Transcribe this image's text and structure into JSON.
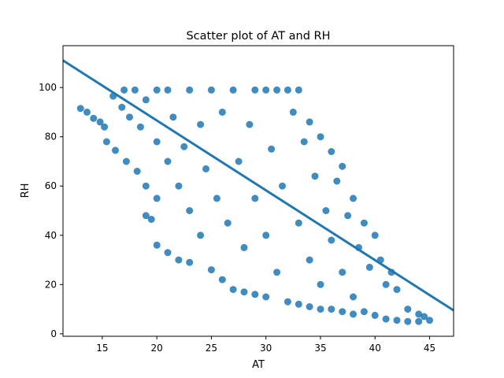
{
  "chart_data": {
    "type": "scatter",
    "title": "Scatter plot of AT and RH",
    "xlabel": "AT",
    "ylabel": "RH",
    "xlim": [
      11.4,
      47.2
    ],
    "ylim": [
      -1.0,
      117.0
    ],
    "xticks": [
      "15",
      "20",
      "25",
      "30",
      "35",
      "40",
      "45"
    ],
    "yticks": [
      "0",
      "20",
      "40",
      "60",
      "80",
      "100"
    ],
    "grid": false,
    "point_color": "#1f77b4",
    "series": [
      {
        "points": [
          [
            13.0,
            91.5
          ],
          [
            13.6,
            90.0
          ],
          [
            14.2,
            87.5
          ],
          [
            14.8,
            86.0
          ],
          [
            15.2,
            84.0
          ],
          [
            15.4,
            78.0
          ],
          [
            16.0,
            96.5
          ],
          [
            16.2,
            74.5
          ],
          [
            16.8,
            92.0
          ],
          [
            17.0,
            99.0
          ],
          [
            17.2,
            70.0
          ],
          [
            17.5,
            88.0
          ],
          [
            18.0,
            99.0
          ],
          [
            18.2,
            66.0
          ],
          [
            18.5,
            84.0
          ],
          [
            19.0,
            95.0
          ],
          [
            19.0,
            60.0
          ],
          [
            19.0,
            48.0
          ],
          [
            19.5,
            46.5
          ],
          [
            20.0,
            99.0
          ],
          [
            20.0,
            78.0
          ],
          [
            20.0,
            55.0
          ],
          [
            20.0,
            36.0
          ],
          [
            21.0,
            99.0
          ],
          [
            21.0,
            70.0
          ],
          [
            21.0,
            33.0
          ],
          [
            21.5,
            88.0
          ],
          [
            22.0,
            60.0
          ],
          [
            22.0,
            30.0
          ],
          [
            22.5,
            76.0
          ],
          [
            23.0,
            99.0
          ],
          [
            23.0,
            50.0
          ],
          [
            23.0,
            29.0
          ],
          [
            24.0,
            85.0
          ],
          [
            24.0,
            40.0
          ],
          [
            24.5,
            67.0
          ],
          [
            25.0,
            99.0
          ],
          [
            25.0,
            26.0
          ],
          [
            25.5,
            55.0
          ],
          [
            26.0,
            90.0
          ],
          [
            26.0,
            22.0
          ],
          [
            26.5,
            45.0
          ],
          [
            27.0,
            99.0
          ],
          [
            27.0,
            18.0
          ],
          [
            27.5,
            70.0
          ],
          [
            28.0,
            35.0
          ],
          [
            28.0,
            17.0
          ],
          [
            28.5,
            85.0
          ],
          [
            29.0,
            99.0
          ],
          [
            29.0,
            55.0
          ],
          [
            29.0,
            16.0
          ],
          [
            30.0,
            99.0
          ],
          [
            30.0,
            40.0
          ],
          [
            30.0,
            15.0
          ],
          [
            30.5,
            75.0
          ],
          [
            31.0,
            99.0
          ],
          [
            31.0,
            25.0
          ],
          [
            31.5,
            60.0
          ],
          [
            32.0,
            99.0
          ],
          [
            32.0,
            13.0
          ],
          [
            32.5,
            90.0
          ],
          [
            33.0,
            99.0
          ],
          [
            33.0,
            45.0
          ],
          [
            33.0,
            12.0
          ],
          [
            33.5,
            78.0
          ],
          [
            34.0,
            86.0
          ],
          [
            34.0,
            30.0
          ],
          [
            34.0,
            11.0
          ],
          [
            34.5,
            64.0
          ],
          [
            35.0,
            80.0
          ],
          [
            35.0,
            20.0
          ],
          [
            35.0,
            10.0
          ],
          [
            35.5,
            50.0
          ],
          [
            36.0,
            74.0
          ],
          [
            36.0,
            38.0
          ],
          [
            36.0,
            10.0
          ],
          [
            36.5,
            62.0
          ],
          [
            37.0,
            68.0
          ],
          [
            37.0,
            25.0
          ],
          [
            37.0,
            9.0
          ],
          [
            37.5,
            48.0
          ],
          [
            38.0,
            55.0
          ],
          [
            38.0,
            15.0
          ],
          [
            38.0,
            8.0
          ],
          [
            38.5,
            35.0
          ],
          [
            39.0,
            45.0
          ],
          [
            39.0,
            9.0
          ],
          [
            39.5,
            27.0
          ],
          [
            40.0,
            40.0
          ],
          [
            40.0,
            7.5
          ],
          [
            40.5,
            30.0
          ],
          [
            41.0,
            20.0
          ],
          [
            41.0,
            6.0
          ],
          [
            41.5,
            25.0
          ],
          [
            42.0,
            18.0
          ],
          [
            42.0,
            5.5
          ],
          [
            43.0,
            10.0
          ],
          [
            43.0,
            5.0
          ],
          [
            44.0,
            8.0
          ],
          [
            44.0,
            5.0
          ],
          [
            44.5,
            7.0
          ],
          [
            45.0,
            5.5
          ]
        ]
      }
    ],
    "regression_line": {
      "x": [
        11.4,
        47.2
      ],
      "y": [
        111.0,
        9.5
      ]
    }
  }
}
